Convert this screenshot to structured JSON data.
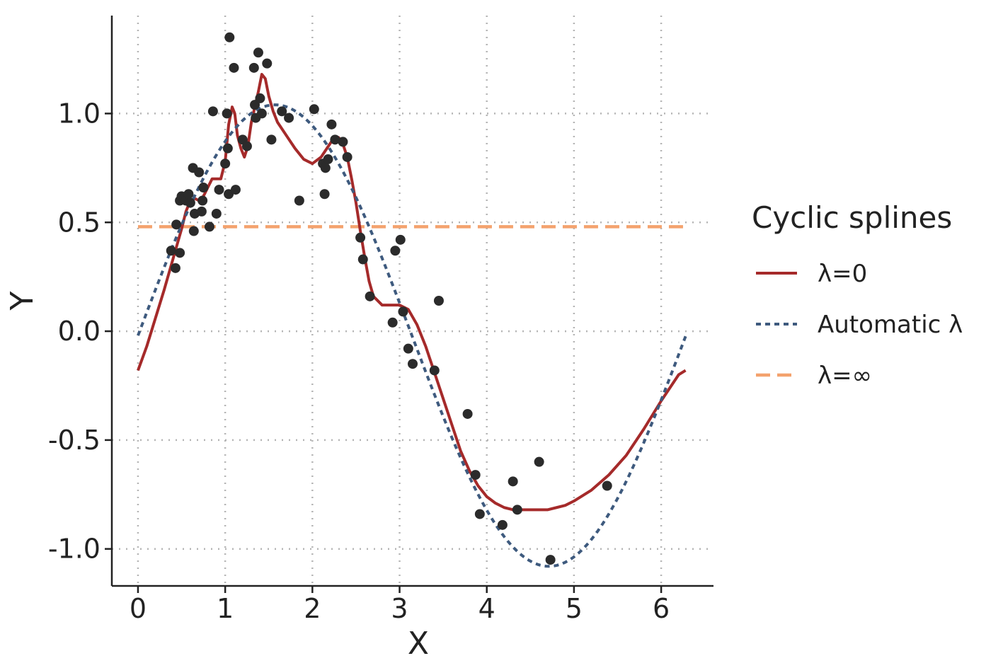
{
  "chart_data": {
    "type": "scatter",
    "xlabel": "X",
    "ylabel": "Y",
    "xlim": [
      -0.3,
      6.6
    ],
    "ylim": [
      -1.17,
      1.45
    ],
    "x_ticks": [
      0,
      1,
      2,
      3,
      4,
      5,
      6
    ],
    "x_tick_labels": [
      "0",
      "1",
      "2",
      "3",
      "4",
      "5",
      "6"
    ],
    "y_ticks": [
      -1.0,
      -0.5,
      0.0,
      0.5,
      1.0
    ],
    "y_tick_labels": [
      "-1.0",
      "-0.5",
      "0.0",
      "0.5",
      "1.0"
    ],
    "grid": true,
    "legend": {
      "title": "Cyclic splines",
      "placement": "right",
      "entries": [
        {
          "label": "λ=0",
          "color": "#a52a2a",
          "style": "solid"
        },
        {
          "label": "Automatic λ",
          "color": "#3e5a7e",
          "style": "dotted"
        },
        {
          "label": "λ=∞",
          "color": "#f4a26d",
          "style": "dashed"
        }
      ]
    },
    "points": {
      "color": "#2b2b2b",
      "x": [
        0.38,
        0.43,
        0.44,
        0.48,
        0.48,
        0.5,
        0.53,
        0.55,
        0.58,
        0.6,
        0.63,
        0.64,
        0.65,
        0.7,
        0.73,
        0.74,
        0.75,
        0.82,
        0.86,
        0.9,
        0.93,
        1.0,
        1.02,
        1.03,
        1.04,
        1.05,
        1.1,
        1.12,
        1.2,
        1.25,
        1.33,
        1.34,
        1.35,
        1.38,
        1.4,
        1.42,
        1.48,
        1.53,
        1.65,
        1.73,
        1.85,
        2.02,
        2.12,
        2.14,
        2.15,
        2.18,
        2.22,
        2.26,
        2.35,
        2.4,
        2.55,
        2.58,
        2.66,
        2.92,
        2.95,
        3.01,
        3.04,
        3.1,
        3.15,
        3.4,
        3.45,
        3.78,
        3.87,
        3.92,
        4.18,
        4.3,
        4.35,
        4.6,
        4.73,
        5.38
      ],
      "y": [
        0.37,
        0.29,
        0.49,
        0.36,
        0.6,
        0.62,
        0.61,
        0.6,
        0.63,
        0.59,
        0.75,
        0.46,
        0.54,
        0.73,
        0.55,
        0.6,
        0.66,
        0.48,
        1.01,
        0.54,
        0.65,
        0.77,
        1.0,
        0.84,
        0.63,
        1.35,
        1.21,
        0.65,
        0.88,
        0.85,
        1.21,
        1.04,
        0.98,
        1.28,
        1.07,
        1.0,
        1.23,
        0.88,
        1.01,
        0.98,
        0.6,
        1.02,
        0.77,
        0.63,
        0.75,
        0.79,
        0.95,
        0.88,
        0.87,
        0.8,
        0.43,
        0.33,
        0.16,
        0.04,
        0.37,
        0.42,
        0.09,
        -0.08,
        -0.15,
        -0.18,
        0.14,
        -0.38,
        -0.66,
        -0.84,
        -0.89,
        -0.69,
        -0.82,
        -0.6,
        -1.05,
        -0.71
      ]
    },
    "series": [
      {
        "name": "λ=0",
        "color": "#a52a2a",
        "style": "solid",
        "x": [
          0.0,
          0.1,
          0.2,
          0.3,
          0.4,
          0.5,
          0.55,
          0.6,
          0.65,
          0.7,
          0.75,
          0.8,
          0.85,
          0.9,
          0.95,
          1.0,
          1.04,
          1.08,
          1.11,
          1.14,
          1.18,
          1.22,
          1.26,
          1.3,
          1.34,
          1.38,
          1.42,
          1.46,
          1.5,
          1.55,
          1.6,
          1.7,
          1.8,
          1.9,
          2.0,
          2.1,
          2.2,
          2.25,
          2.3,
          2.35,
          2.4,
          2.45,
          2.5,
          2.55,
          2.6,
          2.65,
          2.7,
          2.8,
          2.9,
          3.0,
          3.1,
          3.2,
          3.3,
          3.4,
          3.5,
          3.6,
          3.7,
          3.8,
          3.9,
          4.0,
          4.1,
          4.2,
          4.3,
          4.4,
          4.5,
          4.6,
          4.7,
          4.8,
          4.9,
          5.0,
          5.2,
          5.4,
          5.6,
          5.8,
          6.0,
          6.2,
          6.28
        ],
        "y": [
          -0.18,
          -0.07,
          0.06,
          0.19,
          0.33,
          0.47,
          0.55,
          0.6,
          0.61,
          0.6,
          0.62,
          0.66,
          0.7,
          0.7,
          0.7,
          0.78,
          0.95,
          1.03,
          1.0,
          0.9,
          0.84,
          0.8,
          0.85,
          0.96,
          1.03,
          1.1,
          1.18,
          1.16,
          1.08,
          1.01,
          0.96,
          0.9,
          0.84,
          0.79,
          0.77,
          0.8,
          0.86,
          0.89,
          0.89,
          0.86,
          0.8,
          0.7,
          0.59,
          0.46,
          0.34,
          0.23,
          0.16,
          0.12,
          0.12,
          0.12,
          0.1,
          0.03,
          -0.07,
          -0.19,
          -0.31,
          -0.43,
          -0.55,
          -0.64,
          -0.71,
          -0.76,
          -0.79,
          -0.81,
          -0.82,
          -0.82,
          -0.82,
          -0.82,
          -0.82,
          -0.81,
          -0.8,
          -0.78,
          -0.73,
          -0.66,
          -0.57,
          -0.45,
          -0.32,
          -0.2,
          -0.18
        ]
      },
      {
        "name": "Automatic λ",
        "color": "#3e5a7e",
        "style": "dotted",
        "formula": "1.06*sin(x)-0.02",
        "x_range": [
          0,
          6.28
        ]
      },
      {
        "name": "λ=∞",
        "color": "#f4a26d",
        "style": "dashed",
        "x": [
          0,
          6.28
        ],
        "y": [
          0.48,
          0.48
        ]
      }
    ]
  }
}
